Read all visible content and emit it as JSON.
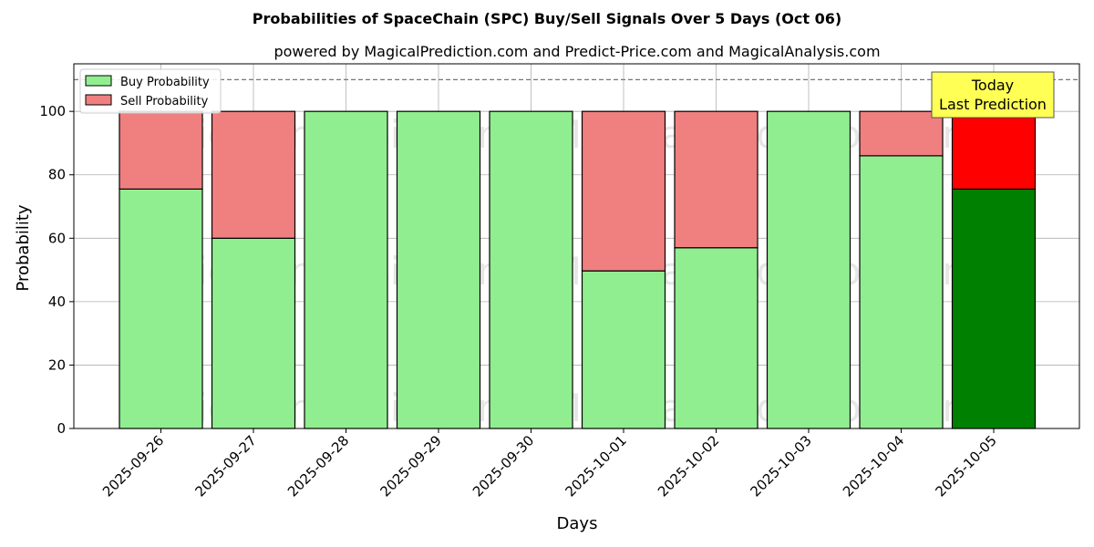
{
  "chart_data": {
    "type": "bar",
    "stacked": true,
    "title": "Probabilities of SpaceChain (SPC) Buy/Sell Signals Over 5 Days (Oct 06)",
    "subtitle": "powered by MagicalPrediction.com and Predict-Price.com and MagicalAnalysis.com",
    "xlabel": "Days",
    "ylabel": "Probability",
    "ylim": [
      0,
      115
    ],
    "yticks": [
      0,
      20,
      40,
      60,
      80,
      100
    ],
    "grid": true,
    "legend_position": "top-left",
    "reference_line": 110,
    "categories": [
      "2025-09-26",
      "2025-09-27",
      "2025-09-28",
      "2025-09-29",
      "2025-09-30",
      "2025-10-01",
      "2025-10-02",
      "2025-10-03",
      "2025-10-04",
      "2025-10-05"
    ],
    "series": [
      {
        "name": "Buy Probability",
        "values": [
          75.5,
          60,
          100,
          100,
          100,
          49.7,
          57,
          100,
          86,
          75.5
        ],
        "color": "#90ee90",
        "highlight_color": "#008000"
      },
      {
        "name": "Sell Probability",
        "values": [
          24.5,
          40,
          0,
          0,
          0,
          50.3,
          43,
          0,
          14,
          24.5
        ],
        "color": "#f08080",
        "highlight_color": "#ff0000"
      }
    ],
    "highlight_index": 9,
    "annotation": {
      "line1": "Today",
      "line2": "Last Prediction",
      "bg_color": "#ffff55"
    },
    "watermarks": [
      "MagicalAnalysis.com",
      "MagicalPrediction.com"
    ]
  }
}
